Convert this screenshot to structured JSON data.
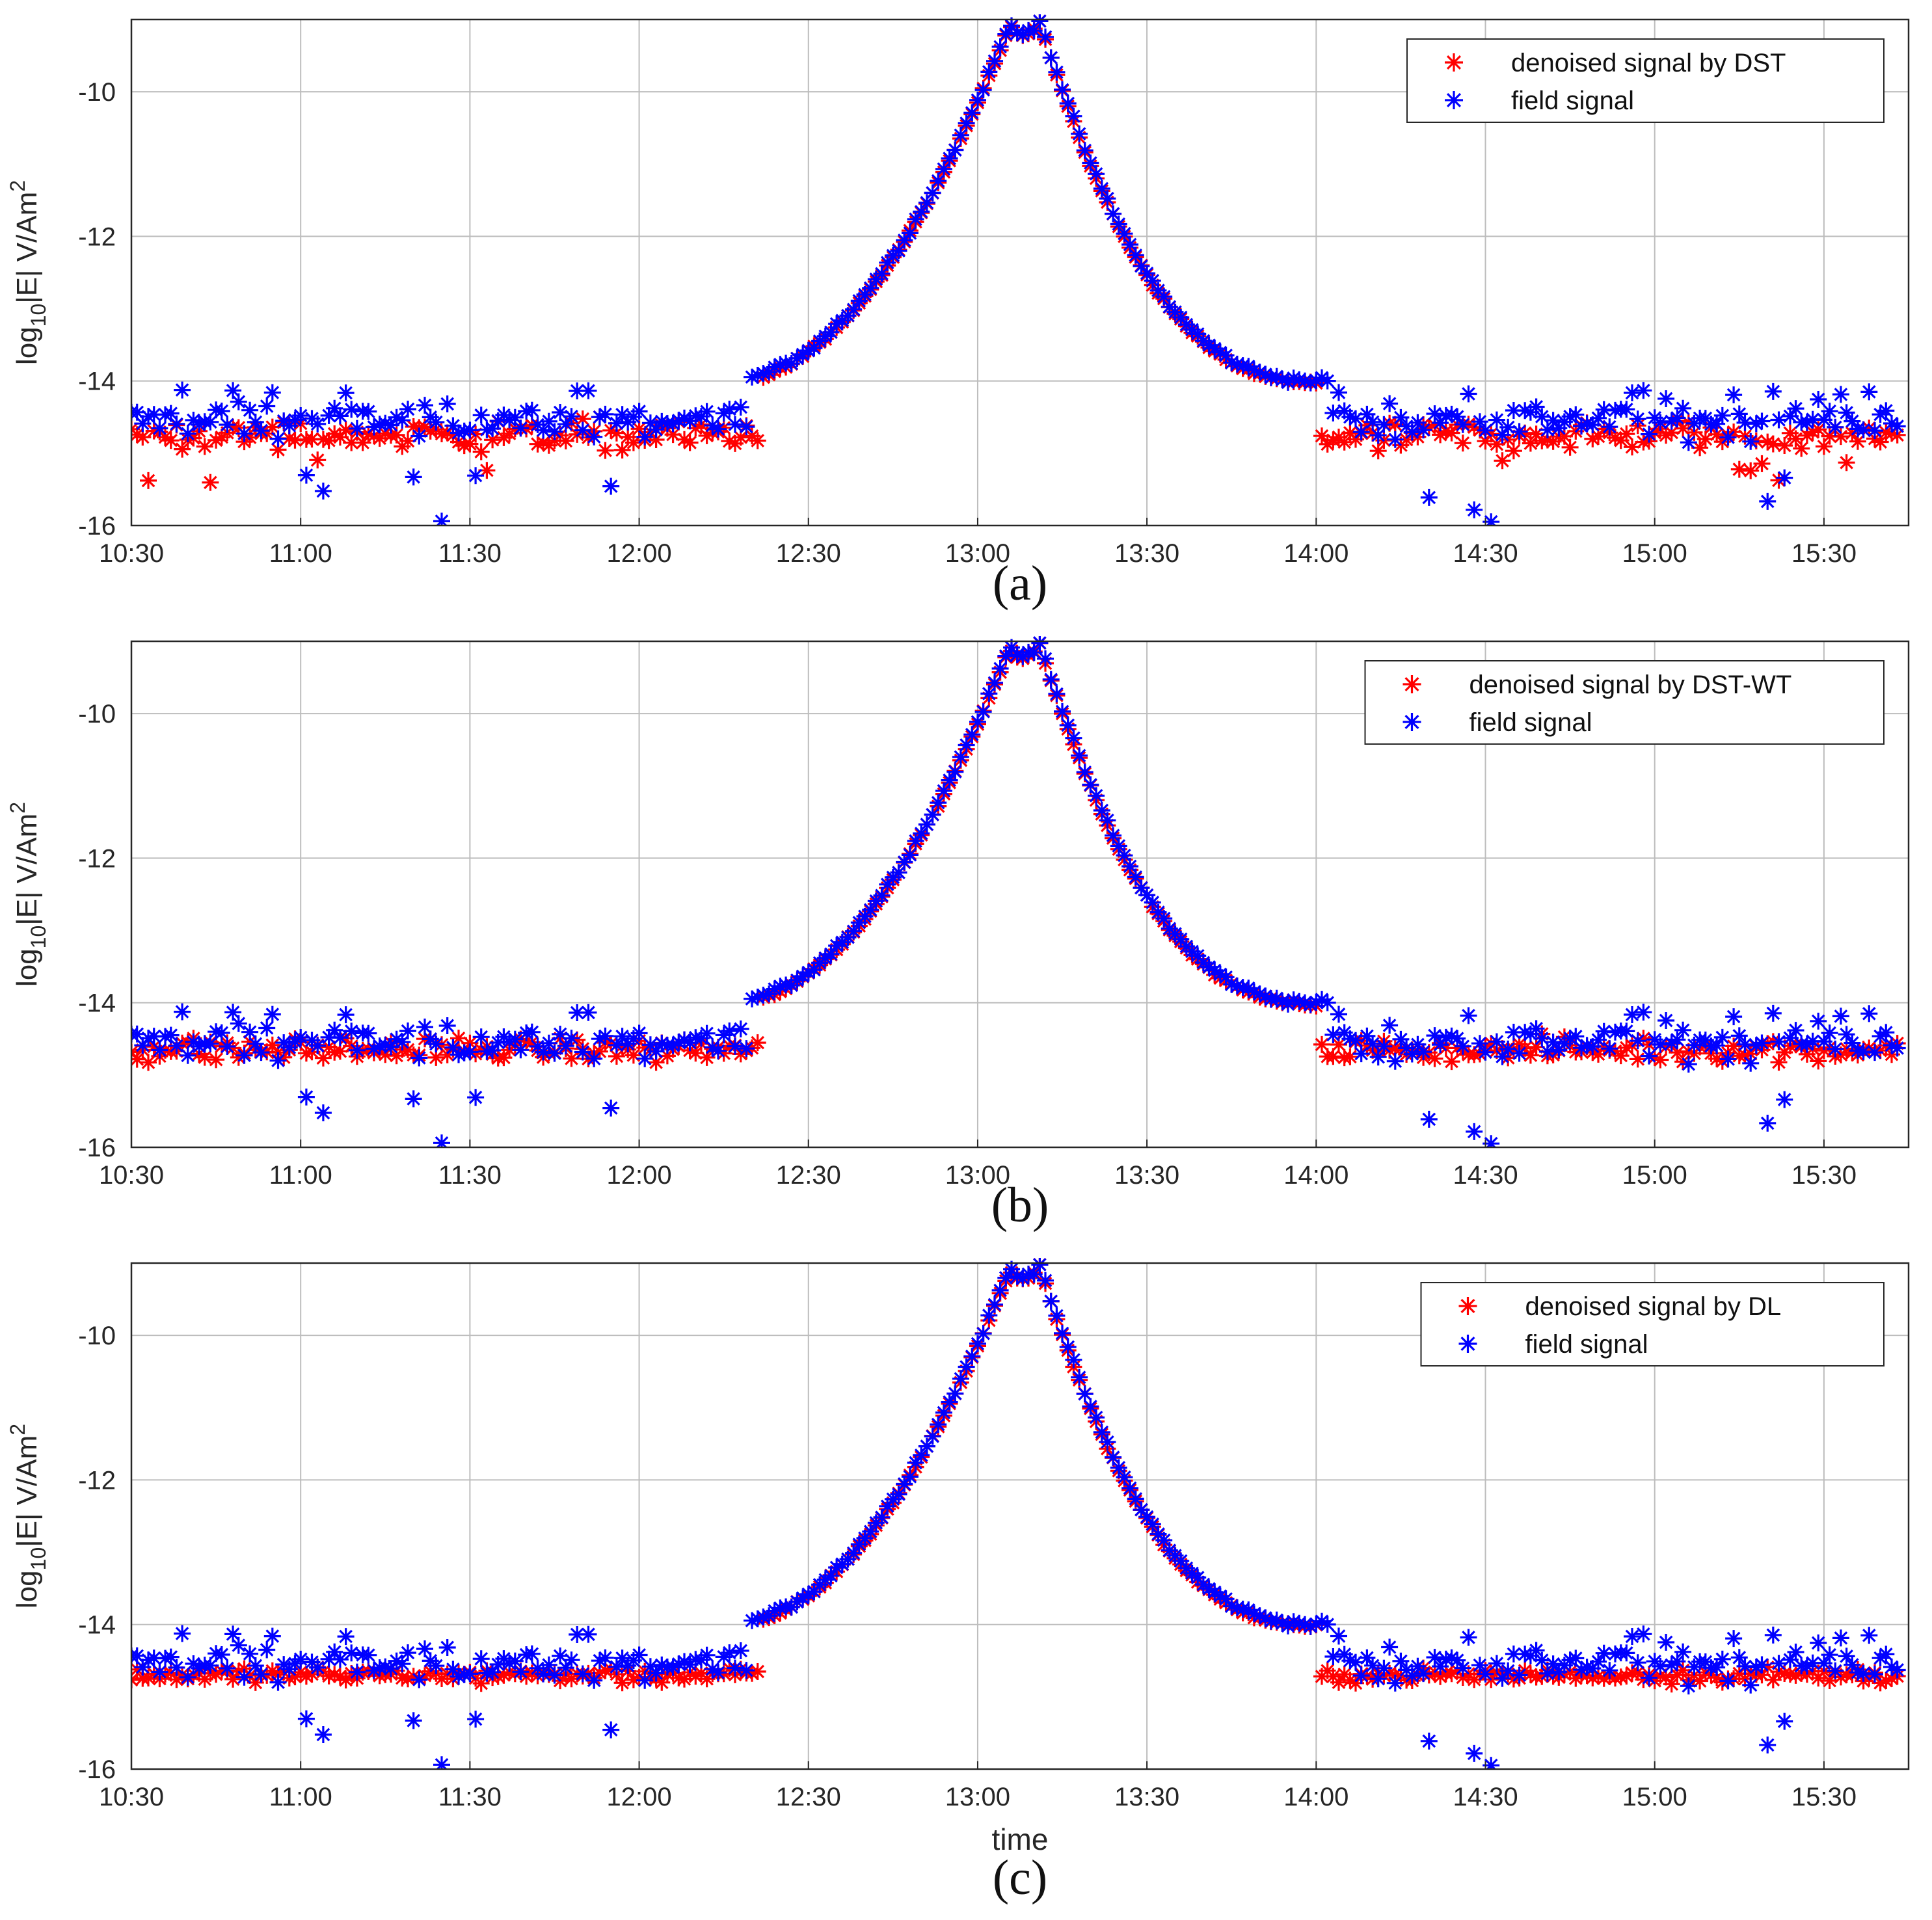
{
  "figure": {
    "xlabel": "time",
    "colors": {
      "denoised": "#ff0000",
      "field": "#0000ff",
      "grid": "#bdbdbd",
      "axis": "#262626"
    }
  },
  "chart_data": [
    {
      "type": "scatter",
      "caption": "(a)",
      "ylabel": {
        "base": "log",
        "sub": "10",
        "mid": "|E| V/Am",
        "sup": "2"
      },
      "xlabel": "",
      "xlim": [
        0,
        315
      ],
      "ylim": [
        -16,
        -9
      ],
      "xticks": [
        0,
        30,
        60,
        90,
        120,
        150,
        180,
        210,
        240,
        270,
        300
      ],
      "xtick_labels": [
        "10:30",
        "11:00",
        "11:30",
        "12:00",
        "12:30",
        "13:00",
        "13:30",
        "14:00",
        "14:30",
        "15:00",
        "15:30"
      ],
      "yticks": [
        -16,
        -14,
        -12,
        -10
      ],
      "ytick_labels": [
        "-16",
        "-14",
        "-12",
        "-10"
      ],
      "series": [
        {
          "name": "denoised signal by DST",
          "color": "#ff0000",
          "marker": "asterisk"
        },
        {
          "name": "field signal",
          "color": "#0000ff",
          "marker": "asterisk"
        }
      ],
      "legend_position": "top-right",
      "x_units": "minutes after 10:30",
      "data_note": "approx. 1 sample per minute; baseline about -14.6 before 12:15 and after 14:00, rising to a peak near -9 at about 13:05"
    },
    {
      "type": "scatter",
      "caption": "(b)",
      "ylabel": {
        "base": "log",
        "sub": "10",
        "mid": "|E| V/Am",
        "sup": "2"
      },
      "xlabel": "",
      "xlim": [
        0,
        315
      ],
      "ylim": [
        -16,
        -9
      ],
      "xticks": [
        0,
        30,
        60,
        90,
        120,
        150,
        180,
        210,
        240,
        270,
        300
      ],
      "xtick_labels": [
        "10:30",
        "11:00",
        "11:30",
        "12:00",
        "12:30",
        "13:00",
        "13:30",
        "14:00",
        "14:30",
        "15:00",
        "15:30"
      ],
      "yticks": [
        -16,
        -14,
        -12,
        -10
      ],
      "ytick_labels": [
        "-16",
        "-14",
        "-12",
        "-10"
      ],
      "series": [
        {
          "name": "denoised signal by DST-WT",
          "color": "#ff0000",
          "marker": "asterisk"
        },
        {
          "name": "field signal",
          "color": "#0000ff",
          "marker": "asterisk"
        }
      ],
      "legend_position": "top-right",
      "x_units": "minutes after 10:30",
      "data_note": "approx. 1 sample per minute; baseline about -14.6 before 12:15 and after 14:00, rising to a peak near -9 at about 13:05"
    },
    {
      "type": "scatter",
      "caption": "(c)",
      "ylabel": {
        "base": "log",
        "sub": "10",
        "mid": "|E| V/Am",
        "sup": "2"
      },
      "xlabel": "time",
      "xlim": [
        0,
        315
      ],
      "ylim": [
        -16,
        -9
      ],
      "xticks": [
        0,
        30,
        60,
        90,
        120,
        150,
        180,
        210,
        240,
        270,
        300
      ],
      "xtick_labels": [
        "10:30",
        "11:00",
        "11:30",
        "12:00",
        "12:30",
        "13:00",
        "13:30",
        "14:00",
        "14:30",
        "15:00",
        "15:30"
      ],
      "yticks": [
        -16,
        -14,
        -12,
        -10
      ],
      "ytick_labels": [
        "-16",
        "-14",
        "-12",
        "-10"
      ],
      "series": [
        {
          "name": "denoised signal by DL",
          "color": "#ff0000",
          "marker": "asterisk"
        },
        {
          "name": "field signal",
          "color": "#0000ff",
          "marker": "asterisk"
        }
      ],
      "legend_position": "top-right",
      "x_units": "minutes after 10:30",
      "data_note": "approx. 1 sample per minute; baseline about -14.6 before 12:15 and after 14:00, rising to a peak near -9 at about 13:05"
    }
  ]
}
